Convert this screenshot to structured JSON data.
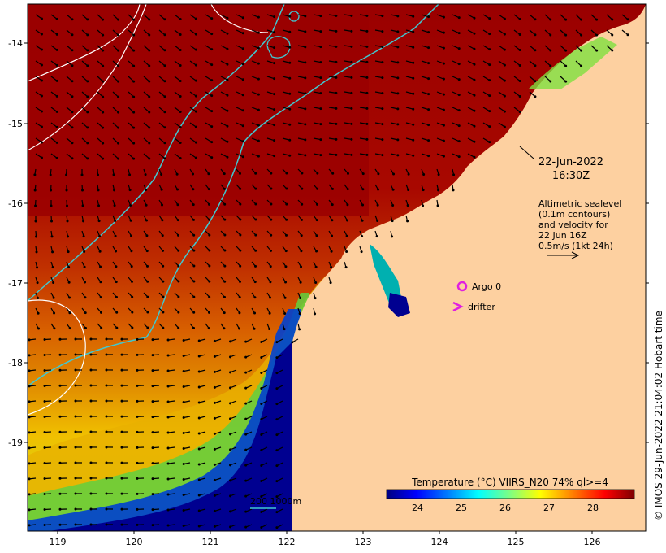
{
  "map": {
    "lon_ticks": [
      "119",
      "120",
      "121",
      "122",
      "123",
      "124",
      "125",
      "126"
    ],
    "lat_ticks": [
      "-14",
      "-15",
      "-16",
      "-17",
      "-18",
      "-19"
    ],
    "timestamp": {
      "date": "22-Jun-2022",
      "time": "16:30Z"
    },
    "altimetry_note": [
      "Altimetric sealevel",
      "(0.1m contours)",
      "and velocity for",
      "22 Jun 16Z",
      "0.5m/s (1kt 24h)"
    ],
    "legend": {
      "argo_label": "Argo 0",
      "drifter_label": "drifter",
      "argo_color": "#e020e0",
      "drifter_color": "#e020e0"
    },
    "isobath_label": "200  1000m",
    "isobath_color": "#40c8d0",
    "colorbar": {
      "title": "Temperature (°C) VIIRS_N20 74% ql>=4",
      "ticks": [
        "24",
        "25",
        "26",
        "27",
        "28"
      ],
      "range": [
        23.2,
        28.8
      ],
      "colors": [
        "#00007f",
        "#0000ff",
        "#0080ff",
        "#00ffff",
        "#80ff80",
        "#ffff00",
        "#ff8000",
        "#ff0000",
        "#7f0000"
      ]
    },
    "land_color": "#fdd0a0",
    "credit": "© IMOS 29-Jun-2022 21:04:02 Hobart time"
  }
}
